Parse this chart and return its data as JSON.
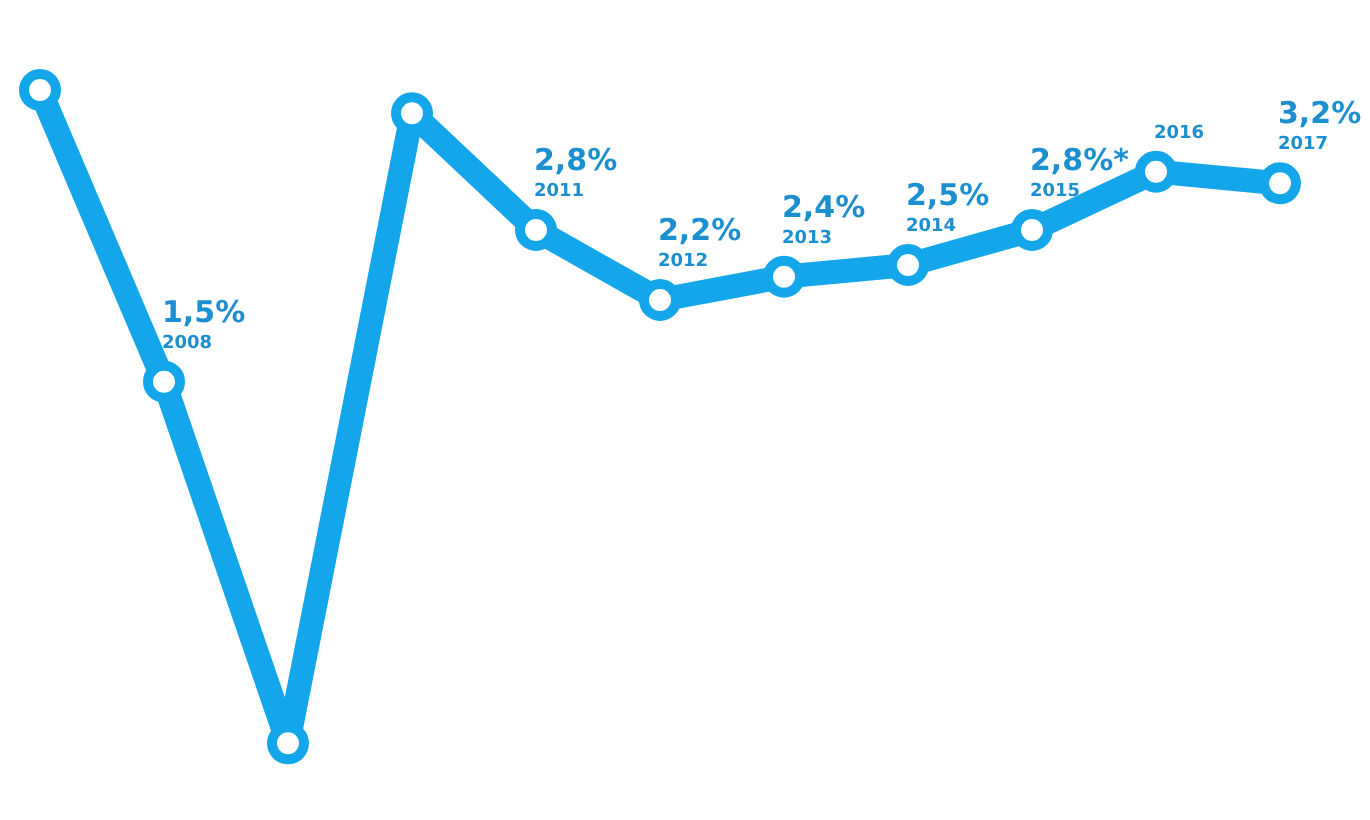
{
  "chart_data": {
    "type": "line",
    "categories": [
      null,
      "2008",
      null,
      null,
      "2011",
      "2012",
      "2013",
      "2014",
      "2015",
      "2016",
      "2017"
    ],
    "values": [
      4.0,
      1.5,
      -1.6,
      3.8,
      2.8,
      2.2,
      2.4,
      2.5,
      2.8,
      3.3,
      3.2
    ],
    "value_labels": [
      null,
      "1,5%",
      null,
      null,
      "2,8%",
      "2,2%",
      "2,4%",
      "2,5%",
      "2,8%*",
      null,
      "3,2%"
    ],
    "color": "#13a6ea",
    "marker": "circle"
  }
}
